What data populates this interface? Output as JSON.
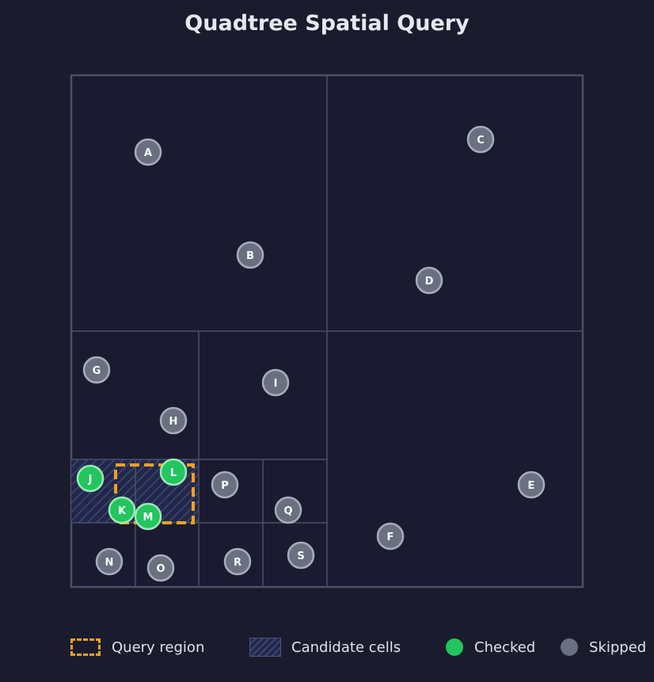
{
  "title": "Quadtree Spatial Query",
  "colors": {
    "background": "#1b1b2e",
    "cell_fill": "#1a1b30",
    "cell_line": "#4a5068",
    "query": "#f0a020",
    "checked": "#22c55e",
    "skipped": "#6b7080",
    "candidate_hatch": "#3c4878"
  },
  "points": [
    {
      "label": "A",
      "status": "skipped"
    },
    {
      "label": "B",
      "status": "skipped"
    },
    {
      "label": "C",
      "status": "skipped"
    },
    {
      "label": "D",
      "status": "skipped"
    },
    {
      "label": "E",
      "status": "skipped"
    },
    {
      "label": "F",
      "status": "skipped"
    },
    {
      "label": "G",
      "status": "skipped"
    },
    {
      "label": "H",
      "status": "skipped"
    },
    {
      "label": "I",
      "status": "skipped"
    },
    {
      "label": "J",
      "status": "checked"
    },
    {
      "label": "K",
      "status": "checked"
    },
    {
      "label": "L",
      "status": "checked"
    },
    {
      "label": "M",
      "status": "checked"
    },
    {
      "label": "N",
      "status": "skipped"
    },
    {
      "label": "O",
      "status": "skipped"
    },
    {
      "label": "P",
      "status": "skipped"
    },
    {
      "label": "Q",
      "status": "skipped"
    },
    {
      "label": "R",
      "status": "skipped"
    },
    {
      "label": "S",
      "status": "skipped"
    }
  ],
  "legend": {
    "query": "Query region",
    "candidate": "Candidate cells",
    "checked": "Checked",
    "skipped": "Skipped"
  }
}
